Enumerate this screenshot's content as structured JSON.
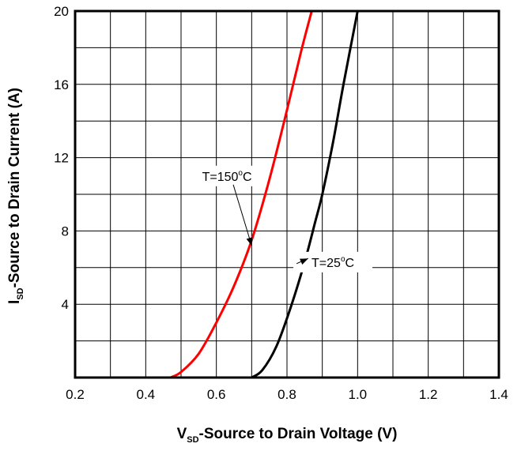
{
  "chart_data": {
    "type": "line",
    "xlabel": {
      "main": "V",
      "sub": "SD",
      "rest": "-Source to Drain Voltage (V)"
    },
    "ylabel": {
      "main": "I",
      "sub": "SD",
      "rest": "-Source to Drain Current (A)"
    },
    "xlim": [
      0.2,
      1.4
    ],
    "ylim": [
      0,
      20
    ],
    "x_ticks": [
      0.2,
      0.4,
      0.6,
      0.8,
      1.0,
      1.2,
      1.4
    ],
    "x_tick_labels": [
      "0.2",
      "0.4",
      "0.6",
      "0.8",
      "1.0",
      "1.2",
      "1.4"
    ],
    "y_ticks": [
      4,
      8,
      12,
      16,
      20
    ],
    "y_tick_labels": [
      "4",
      "8",
      "12",
      "16",
      "20"
    ],
    "x_grid_step": 0.1,
    "y_grid_step": 2,
    "grid": true,
    "series": [
      {
        "name": "T=150°C",
        "label_main": "T=150",
        "label_deg": "o",
        "label_unit": "C",
        "color": "#ff0000",
        "x": [
          0.47,
          0.5,
          0.55,
          0.6,
          0.65,
          0.7,
          0.75,
          0.8,
          0.84,
          0.87
        ],
        "y": [
          0,
          0.3,
          1.3,
          3.0,
          5.0,
          7.5,
          10.8,
          14.6,
          17.8,
          20
        ]
      },
      {
        "name": "T=25°C",
        "label_main": "T=25",
        "label_deg": "o",
        "label_unit": "C",
        "color": "#000000",
        "x": [
          0.7,
          0.73,
          0.77,
          0.81,
          0.85,
          0.88,
          0.9,
          0.93,
          0.96,
          1.0
        ],
        "y": [
          0,
          0.4,
          1.7,
          3.8,
          6.3,
          8.5,
          10.0,
          12.8,
          16.0,
          20
        ]
      }
    ],
    "annotations": [
      {
        "series": 0,
        "at_x": 0.7,
        "at_y": 7.2,
        "text_x": 0.63,
        "text_y": 11.0
      },
      {
        "series": 1,
        "at_x": 0.86,
        "at_y": 6.5,
        "text_x": 0.93,
        "text_y": 6.3
      }
    ]
  }
}
